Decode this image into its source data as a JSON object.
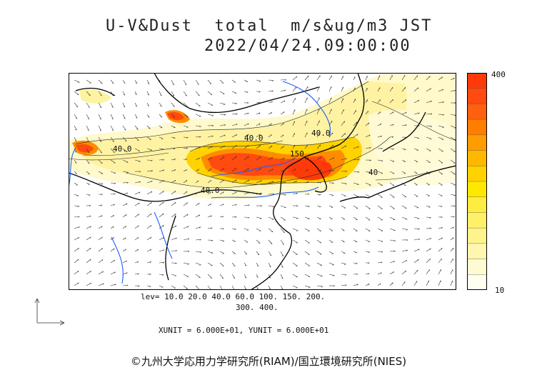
{
  "header": {
    "title_line1": "U-V&Dust  total  m/s&ug/m3 JST",
    "title_line2": "2022/04/24.09:00:00"
  },
  "colorbar": {
    "max_label": "400",
    "min_label": "10",
    "colors": [
      "#fffff0",
      "#fffbd0",
      "#fff7b0",
      "#fff38c",
      "#fff06a",
      "#ffec40",
      "#ffe800",
      "#ffd200",
      "#ffb800",
      "#ff9c00",
      "#ff7e00",
      "#ff6010",
      "#ff4a10",
      "#ff3a0a"
    ]
  },
  "legend": {
    "levels_line1": "lev= 10.0 20.0 40.0 60.0 100. 150. 200.",
    "levels_line2": "300. 400.",
    "units_line": "XUNIT = 6.000E+01, YUNIT = 6.000E+01"
  },
  "map_labels": {
    "contour_labels": [
      "40.0",
      "40.0",
      "40.0",
      "150",
      "40",
      "40.0"
    ]
  },
  "colors": {
    "land_border": "#000000",
    "rivers": "#1a5cff",
    "contour": "#222222"
  },
  "footer": {
    "credit": "©九州大学応用力学研究所(RIAM)/国立環境研究所(NIES)"
  }
}
